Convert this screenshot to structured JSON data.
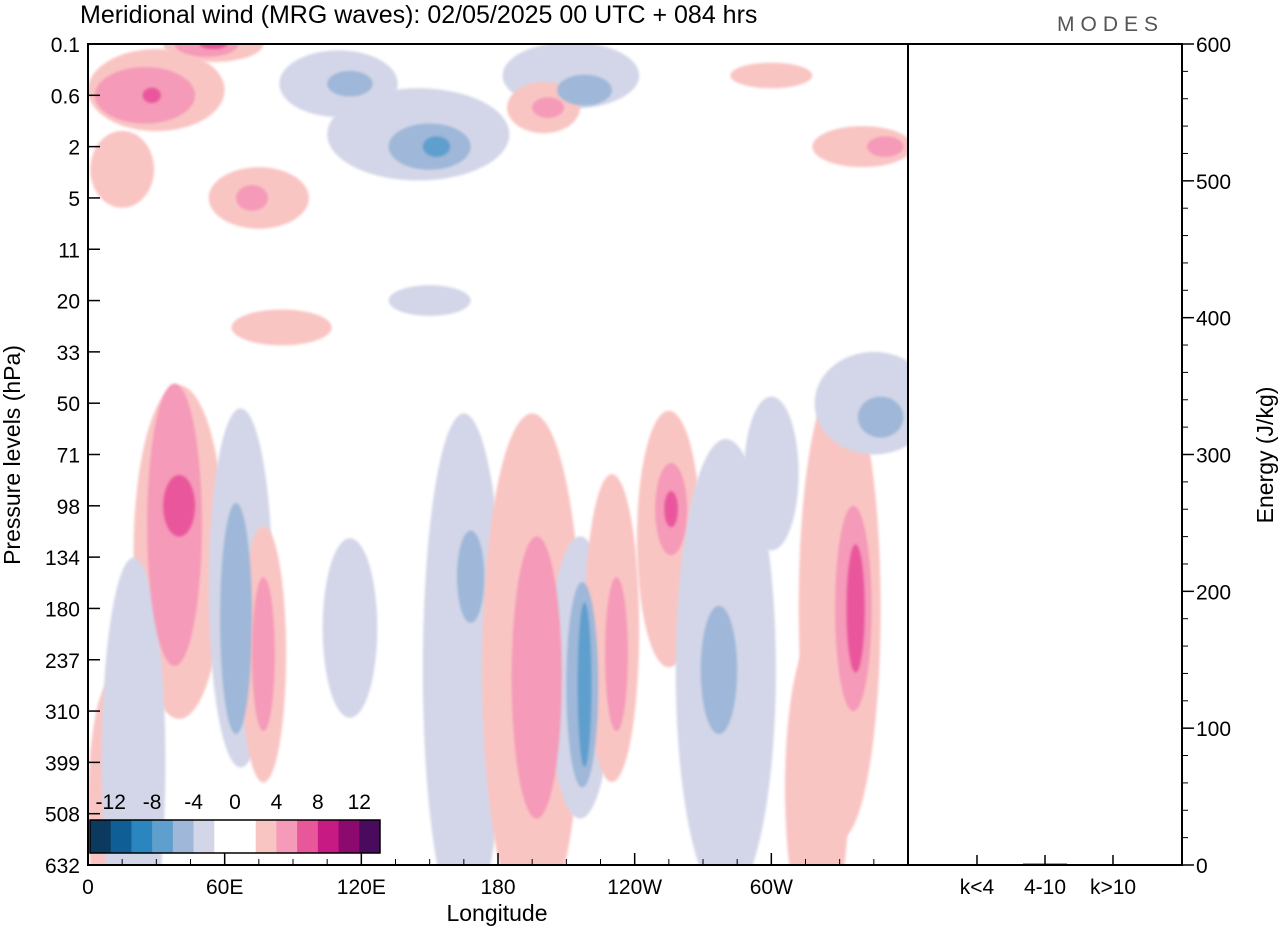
{
  "chart_data": {
    "type": "heatmap",
    "title": "Meridional wind (MRG waves):  02/05/2025  00 UTC  + 084 hrs",
    "brand": "MODES",
    "xlabel": "Longitude",
    "ylabel": "Pressure levels (hPa)",
    "x_ticks": [
      "0",
      "60E",
      "120E",
      "180",
      "120W",
      "60W"
    ],
    "x_tick_values": [
      0,
      60,
      120,
      180,
      240,
      300
    ],
    "xlim": [
      0,
      360
    ],
    "y_ticks": [
      "0.1",
      "0.6",
      "2",
      "5",
      "11",
      "20",
      "33",
      "50",
      "71",
      "98",
      "134",
      "180",
      "237",
      "310",
      "399",
      "508",
      "632"
    ],
    "colorbar": {
      "labels": [
        "-12",
        "-8",
        "-4",
        "0",
        "4",
        "8",
        "12"
      ],
      "colors": [
        "#0b3a5e",
        "#0f5f96",
        "#2b86c0",
        "#5e9fcd",
        "#9fb7d8",
        "#d3d6e8",
        "#ffffff",
        "#ffffff",
        "#f9c5c3",
        "#f59ab8",
        "#e9579b",
        "#c71a82",
        "#8c0a6e",
        "#4a0a5e"
      ]
    },
    "contours": [
      {
        "level": -2,
        "lon": 145,
        "p": 1.5,
        "dlon": 40,
        "dlev": 1.8
      },
      {
        "level": -4,
        "lon": 150,
        "p": 2.0,
        "dlon": 18,
        "dlev": 0.9
      },
      {
        "level": -6,
        "lon": 153,
        "p": 2.0,
        "dlon": 6,
        "dlev": 0.4
      },
      {
        "level": -2,
        "lon": 110,
        "p": 0.4,
        "dlon": 26,
        "dlev": 1.3
      },
      {
        "level": -4,
        "lon": 115,
        "p": 0.4,
        "dlon": 10,
        "dlev": 0.5
      },
      {
        "level": -2,
        "lon": 212,
        "p": 0.3,
        "dlon": 30,
        "dlev": 1.3
      },
      {
        "level": -4,
        "lon": 218,
        "p": 0.5,
        "dlon": 12,
        "dlev": 0.6
      },
      {
        "level": 2,
        "lon": 30,
        "p": 0.5,
        "dlon": 30,
        "dlev": 1.6
      },
      {
        "level": 4,
        "lon": 25,
        "p": 0.6,
        "dlon": 22,
        "dlev": 1.1
      },
      {
        "level": 6,
        "lon": 28,
        "p": 0.6,
        "dlon": 4,
        "dlev": 0.3
      },
      {
        "level": 2,
        "lon": 55,
        "p": 0.1,
        "dlon": 22,
        "dlev": 0.7
      },
      {
        "level": 4,
        "lon": 52,
        "p": 0.1,
        "dlon": 14,
        "dlev": 0.5
      },
      {
        "level": 6,
        "lon": 55,
        "p": 0.1,
        "dlon": 6,
        "dlev": 0.2
      },
      {
        "level": 2,
        "lon": 75,
        "p": 5.0,
        "dlon": 22,
        "dlev": 1.2
      },
      {
        "level": 4,
        "lon": 72,
        "p": 5.0,
        "dlon": 7,
        "dlev": 0.5
      },
      {
        "level": 2,
        "lon": 15,
        "p": 3.0,
        "dlon": 14,
        "dlev": 1.5
      },
      {
        "level": 2,
        "lon": 200,
        "p": 0.8,
        "dlon": 16,
        "dlev": 1.0
      },
      {
        "level": 4,
        "lon": 202,
        "p": 0.8,
        "dlon": 7,
        "dlev": 0.4
      },
      {
        "level": 2,
        "lon": 340,
        "p": 2.0,
        "dlon": 22,
        "dlev": 0.8
      },
      {
        "level": 4,
        "lon": 350,
        "p": 2.0,
        "dlon": 8,
        "dlev": 0.4
      },
      {
        "level": 2,
        "lon": 300,
        "p": 0.3,
        "dlon": 18,
        "dlev": 0.5
      },
      {
        "level": -2,
        "lon": 150,
        "p": 20.0,
        "dlon": 18,
        "dlev": 0.6
      },
      {
        "level": 2,
        "lon": 85,
        "p": 26.0,
        "dlon": 22,
        "dlev": 0.7
      },
      {
        "level": 2,
        "lon": 40,
        "p": 130.0,
        "dlon": 20,
        "dlev": 6.5
      },
      {
        "level": 4,
        "lon": 38,
        "p": 110.0,
        "dlon": 12,
        "dlev": 5.5
      },
      {
        "level": 6,
        "lon": 40,
        "p": 98.0,
        "dlon": 7,
        "dlev": 1.2
      },
      {
        "level": -2,
        "lon": 67,
        "p": 160.0,
        "dlon": 14,
        "dlev": 7.0
      },
      {
        "level": -4,
        "lon": 65,
        "p": 190.0,
        "dlon": 7,
        "dlev": 4.5
      },
      {
        "level": 2,
        "lon": 77,
        "p": 230.0,
        "dlon": 10,
        "dlev": 5.0
      },
      {
        "level": 4,
        "lon": 77,
        "p": 230.0,
        "dlon": 5,
        "dlev": 3.0
      },
      {
        "level": -2,
        "lon": 115,
        "p": 200.0,
        "dlon": 12,
        "dlev": 3.5
      },
      {
        "level": -2,
        "lon": 165,
        "p": 250.0,
        "dlon": 18,
        "dlev": 10.0
      },
      {
        "level": -4,
        "lon": 168,
        "p": 150.0,
        "dlon": 6,
        "dlev": 1.8
      },
      {
        "level": 2,
        "lon": 195,
        "p": 250.0,
        "dlon": 22,
        "dlev": 10.0
      },
      {
        "level": 4,
        "lon": 197,
        "p": 260.0,
        "dlon": 11,
        "dlev": 5.5
      },
      {
        "level": -2,
        "lon": 216,
        "p": 260.0,
        "dlon": 14,
        "dlev": 5.5
      },
      {
        "level": -4,
        "lon": 217,
        "p": 270.0,
        "dlon": 7,
        "dlev": 4.0
      },
      {
        "level": -6,
        "lon": 218,
        "p": 270.0,
        "dlon": 3,
        "dlev": 3.2
      },
      {
        "level": 2,
        "lon": 230,
        "p": 200.0,
        "dlon": 12,
        "dlev": 6.0
      },
      {
        "level": 4,
        "lon": 232,
        "p": 230.0,
        "dlon": 5,
        "dlev": 3.0
      },
      {
        "level": 2,
        "lon": 255,
        "p": 120.0,
        "dlon": 14,
        "dlev": 5.0
      },
      {
        "level": 4,
        "lon": 256,
        "p": 100.0,
        "dlon": 7,
        "dlev": 1.8
      },
      {
        "level": 6,
        "lon": 256,
        "p": 100.0,
        "dlon": 3,
        "dlev": 0.7
      },
      {
        "level": -2,
        "lon": 280,
        "p": 250.0,
        "dlon": 22,
        "dlev": 9.0
      },
      {
        "level": -4,
        "lon": 277,
        "p": 250.0,
        "dlon": 8,
        "dlev": 2.5
      },
      {
        "level": 2,
        "lon": 330,
        "p": 180.0,
        "dlon": 18,
        "dlev": 9.0
      },
      {
        "level": 4,
        "lon": 336,
        "p": 180.0,
        "dlon": 8,
        "dlev": 4.0
      },
      {
        "level": 6,
        "lon": 337,
        "p": 180.0,
        "dlon": 4,
        "dlev": 2.5
      },
      {
        "level": -2,
        "lon": 345,
        "p": 50.0,
        "dlon": 26,
        "dlev": 2.0
      },
      {
        "level": -4,
        "lon": 348,
        "p": 55.0,
        "dlon": 10,
        "dlev": 0.8
      },
      {
        "level": 2,
        "lon": 10,
        "p": 500.0,
        "dlon": 10,
        "dlev": 5.0
      },
      {
        "level": -2,
        "lon": 20,
        "p": 400.0,
        "dlon": 14,
        "dlev": 8.0
      },
      {
        "level": 2,
        "lon": 320,
        "p": 450.0,
        "dlon": 14,
        "dlev": 6.0
      },
      {
        "level": -2,
        "lon": 300,
        "p": 80.0,
        "dlon": 12,
        "dlev": 3.0
      }
    ],
    "energy": {
      "ylabel": "Energy (J/kg)",
      "ylim": [
        0,
        600
      ],
      "y_ticks": [
        0,
        100,
        200,
        300,
        400,
        500,
        600
      ],
      "categories": [
        "k<4",
        "4-10",
        "k>10"
      ],
      "values": [
        0,
        1,
        0
      ]
    }
  }
}
